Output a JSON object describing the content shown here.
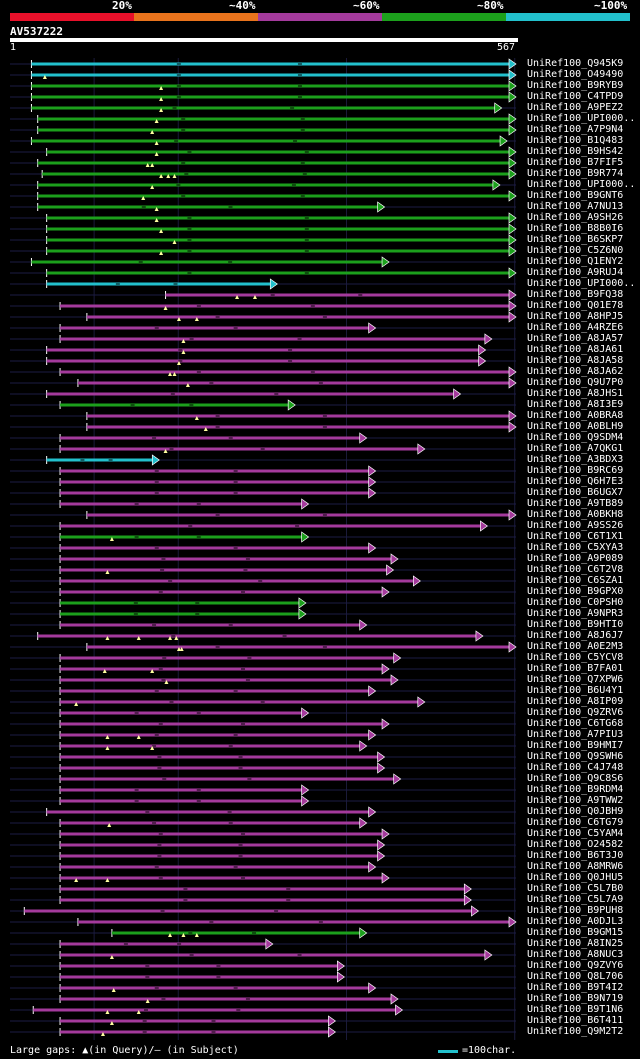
{
  "query": {
    "name": "AV537222",
    "start": "1",
    "end": "567",
    "length": 567
  },
  "legend": {
    "labels": [
      "20%",
      "~40%",
      "~60%",
      "~80%",
      "~100%"
    ],
    "colors": [
      "#e8102a",
      "#e8731c",
      "#a43a9c",
      "#1ca01c",
      "#22c0cc"
    ]
  },
  "footer": {
    "gaps_text": "Large gaps: ▲(in Query)/– (in Subject)",
    "scale_text": "=100char."
  },
  "hits": [
    {
      "label": "UniRef100_Q945K9",
      "start": 25,
      "end": 567,
      "color": "cyan",
      "gaps": []
    },
    {
      "label": "UniRef100_O49490",
      "start": 25,
      "end": 567,
      "color": "cyan",
      "gaps": [
        40
      ]
    },
    {
      "label": "UniRef100_B9RYB9",
      "start": 25,
      "end": 567,
      "color": "green",
      "gaps": [
        170
      ]
    },
    {
      "label": "UniRef100_C4TPD9",
      "start": 25,
      "end": 567,
      "color": "green",
      "gaps": [
        170
      ]
    },
    {
      "label": "UniRef100_A9PEZ2",
      "start": 25,
      "end": 551,
      "color": "green",
      "gaps": [
        170
      ]
    },
    {
      "label": "UniRef100_UPI000..",
      "start": 32,
      "end": 567,
      "color": "green",
      "gaps": [
        165
      ]
    },
    {
      "label": "UniRef100_A7P9N4",
      "start": 32,
      "end": 567,
      "color": "green",
      "gaps": [
        160
      ]
    },
    {
      "label": "UniRef100_B1Q483",
      "start": 25,
      "end": 557,
      "color": "green",
      "gaps": [
        165
      ]
    },
    {
      "label": "UniRef100_B9HS42",
      "start": 42,
      "end": 567,
      "color": "green",
      "gaps": [
        165
      ]
    },
    {
      "label": "UniRef100_B7FIF5",
      "start": 32,
      "end": 567,
      "color": "green",
      "gaps": [
        155,
        160
      ]
    },
    {
      "label": "UniRef100_B9R774",
      "start": 37,
      "end": 567,
      "color": "green",
      "gaps": [
        170,
        178,
        185
      ]
    },
    {
      "label": "UniRef100_UPI000..",
      "start": 32,
      "end": 549,
      "color": "green",
      "gaps": [
        160
      ]
    },
    {
      "label": "UniRef100_B9GNT6",
      "start": 32,
      "end": 567,
      "color": "green",
      "gaps": [
        150
      ]
    },
    {
      "label": "UniRef100_A7NU13",
      "start": 32,
      "end": 420,
      "color": "green",
      "gaps": [
        165
      ]
    },
    {
      "label": "UniRef100_A9SH26",
      "start": 42,
      "end": 567,
      "color": "green",
      "gaps": [
        165
      ]
    },
    {
      "label": "UniRef100_B8B0I6",
      "start": 42,
      "end": 567,
      "color": "green",
      "gaps": [
        170
      ]
    },
    {
      "label": "UniRef100_B6SKP7",
      "start": 42,
      "end": 567,
      "color": "green",
      "gaps": [
        185
      ]
    },
    {
      "label": "UniRef100_C5Z6N0",
      "start": 42,
      "end": 567,
      "color": "green",
      "gaps": [
        170
      ]
    },
    {
      "label": "UniRef100_Q1ENY2",
      "start": 25,
      "end": 425,
      "color": "green",
      "gaps": []
    },
    {
      "label": "UniRef100_A9RUJ4",
      "start": 42,
      "end": 567,
      "color": "green",
      "gaps": []
    },
    {
      "label": "UniRef100_UPI000..",
      "start": 42,
      "end": 300,
      "color": "cyan",
      "gaps": []
    },
    {
      "label": "UniRef100_B9FQ38",
      "start": 175,
      "end": 567,
      "color": "magenta",
      "gaps": [
        255,
        275
      ]
    },
    {
      "label": "UniRef100_Q01E78",
      "start": 57,
      "end": 567,
      "color": "magenta",
      "gaps": [
        175
      ]
    },
    {
      "label": "UniRef100_A8HPJ5",
      "start": 87,
      "end": 567,
      "color": "magenta",
      "gaps": [
        190,
        210
      ]
    },
    {
      "label": "UniRef100_A4RZE6",
      "start": 57,
      "end": 410,
      "color": "magenta",
      "gaps": []
    },
    {
      "label": "UniRef100_A8JA57",
      "start": 57,
      "end": 540,
      "color": "magenta",
      "gaps": [
        195
      ]
    },
    {
      "label": "UniRef100_A8JA61",
      "start": 42,
      "end": 533,
      "color": "magenta",
      "gaps": [
        195
      ]
    },
    {
      "label": "UniRef100_A8JA58",
      "start": 42,
      "end": 533,
      "color": "magenta",
      "gaps": [
        190
      ]
    },
    {
      "label": "UniRef100_A8JA62",
      "start": 57,
      "end": 567,
      "color": "magenta",
      "gaps": [
        180,
        185
      ]
    },
    {
      "label": "UniRef100_Q9U7P0",
      "start": 77,
      "end": 567,
      "color": "magenta",
      "gaps": [
        200
      ]
    },
    {
      "label": "UniRef100_A8JHS1",
      "start": 42,
      "end": 505,
      "color": "magenta",
      "gaps": []
    },
    {
      "label": "UniRef100_A8I3E9",
      "start": 57,
      "end": 320,
      "color": "green",
      "gaps": []
    },
    {
      "label": "UniRef100_A0BRA8",
      "start": 87,
      "end": 567,
      "color": "magenta",
      "gaps": [
        210
      ]
    },
    {
      "label": "UniRef100_A0BLH9",
      "start": 87,
      "end": 567,
      "color": "magenta",
      "gaps": [
        220
      ]
    },
    {
      "label": "UniRef100_Q9SDM4",
      "start": 57,
      "end": 400,
      "color": "magenta",
      "gaps": []
    },
    {
      "label": "UniRef100_A7QKG1",
      "start": 57,
      "end": 465,
      "color": "magenta",
      "gaps": [
        175
      ]
    },
    {
      "label": "UniRef100_A3BDX3",
      "start": 42,
      "end": 168,
      "color": "cyan",
      "gaps": []
    },
    {
      "label": "UniRef100_B9RC69",
      "start": 57,
      "end": 410,
      "color": "magenta",
      "gaps": []
    },
    {
      "label": "UniRef100_Q6H7E3",
      "start": 57,
      "end": 410,
      "color": "magenta",
      "gaps": []
    },
    {
      "label": "UniRef100_B6UGX7",
      "start": 57,
      "end": 410,
      "color": "magenta",
      "gaps": []
    },
    {
      "label": "UniRef100_A9TB89",
      "start": 57,
      "end": 335,
      "color": "magenta",
      "gaps": []
    },
    {
      "label": "UniRef100_A0BKH8",
      "start": 87,
      "end": 567,
      "color": "magenta",
      "gaps": []
    },
    {
      "label": "UniRef100_A9SS26",
      "start": 57,
      "end": 535,
      "color": "magenta",
      "gaps": []
    },
    {
      "label": "UniRef100_C6T1X1",
      "start": 57,
      "end": 335,
      "color": "green",
      "gaps": [
        115
      ]
    },
    {
      "label": "UniRef100_C5XYA3",
      "start": 57,
      "end": 410,
      "color": "magenta",
      "gaps": []
    },
    {
      "label": "UniRef100_A9P089",
      "start": 57,
      "end": 435,
      "color": "magenta",
      "gaps": []
    },
    {
      "label": "UniRef100_C6T2V8",
      "start": 57,
      "end": 430,
      "color": "magenta",
      "gaps": [
        110
      ]
    },
    {
      "label": "UniRef100_C6SZA1",
      "start": 57,
      "end": 460,
      "color": "magenta",
      "gaps": []
    },
    {
      "label": "UniRef100_B9GPX0",
      "start": 57,
      "end": 425,
      "color": "magenta",
      "gaps": []
    },
    {
      "label": "UniRef100_C0PSH0",
      "start": 57,
      "end": 332,
      "color": "green",
      "gaps": []
    },
    {
      "label": "UniRef100_A9NPR3",
      "start": 57,
      "end": 332,
      "color": "green",
      "gaps": []
    },
    {
      "label": "UniRef100_B9HTI0",
      "start": 57,
      "end": 400,
      "color": "magenta",
      "gaps": []
    },
    {
      "label": "UniRef100_A8J6J7",
      "start": 32,
      "end": 530,
      "color": "magenta",
      "gaps": [
        110,
        145,
        180,
        187
      ]
    },
    {
      "label": "UniRef100_A0E2M3",
      "start": 87,
      "end": 567,
      "color": "magenta",
      "gaps": [
        190,
        193
      ]
    },
    {
      "label": "UniRef100_C5YCV8",
      "start": 57,
      "end": 438,
      "color": "magenta",
      "gaps": []
    },
    {
      "label": "UniRef100_B7FA01",
      "start": 57,
      "end": 425,
      "color": "magenta",
      "gaps": [
        107,
        160
      ]
    },
    {
      "label": "UniRef100_Q7XPW6",
      "start": 57,
      "end": 435,
      "color": "magenta",
      "gaps": [
        176
      ]
    },
    {
      "label": "UniRef100_B6U4Y1",
      "start": 57,
      "end": 410,
      "color": "magenta",
      "gaps": []
    },
    {
      "label": "UniRef100_A8IP09",
      "start": 57,
      "end": 465,
      "color": "magenta",
      "gaps": [
        75
      ]
    },
    {
      "label": "UniRef100_Q9ZRV6",
      "start": 57,
      "end": 335,
      "color": "magenta",
      "gaps": []
    },
    {
      "label": "UniRef100_C6TG68",
      "start": 57,
      "end": 425,
      "color": "magenta",
      "gaps": []
    },
    {
      "label": "UniRef100_A7PIU3",
      "start": 57,
      "end": 410,
      "color": "magenta",
      "gaps": [
        110,
        145
      ]
    },
    {
      "label": "UniRef100_B9HMI7",
      "start": 57,
      "end": 400,
      "color": "magenta",
      "gaps": [
        110,
        160
      ]
    },
    {
      "label": "UniRef100_Q9SWH6",
      "start": 57,
      "end": 420,
      "color": "magenta",
      "gaps": []
    },
    {
      "label": "UniRef100_C4J748",
      "start": 57,
      "end": 420,
      "color": "magenta",
      "gaps": []
    },
    {
      "label": "UniRef100_Q9C8S6",
      "start": 57,
      "end": 438,
      "color": "magenta",
      "gaps": []
    },
    {
      "label": "UniRef100_B9RDM4",
      "start": 57,
      "end": 335,
      "color": "magenta",
      "gaps": []
    },
    {
      "label": "UniRef100_A9TWW2",
      "start": 57,
      "end": 335,
      "color": "magenta",
      "gaps": []
    },
    {
      "label": "UniRef100_Q0JBH9",
      "start": 42,
      "end": 410,
      "color": "magenta",
      "gaps": []
    },
    {
      "label": "UniRef100_C6TG79",
      "start": 57,
      "end": 400,
      "color": "magenta",
      "gaps": [
        112
      ]
    },
    {
      "label": "UniRef100_C5YAM4",
      "start": 57,
      "end": 425,
      "color": "magenta",
      "gaps": []
    },
    {
      "label": "UniRef100_O24582",
      "start": 57,
      "end": 420,
      "color": "magenta",
      "gaps": []
    },
    {
      "label": "UniRef100_B6T3J0",
      "start": 57,
      "end": 420,
      "color": "magenta",
      "gaps": []
    },
    {
      "label": "UniRef100_A8MRW6",
      "start": 57,
      "end": 410,
      "color": "magenta",
      "gaps": []
    },
    {
      "label": "UniRef100_Q0JHU5",
      "start": 57,
      "end": 425,
      "color": "magenta",
      "gaps": [
        75,
        110
      ]
    },
    {
      "label": "UniRef100_C5L7B0",
      "start": 57,
      "end": 517,
      "color": "magenta",
      "gaps": []
    },
    {
      "label": "UniRef100_C5L7A9",
      "start": 57,
      "end": 517,
      "color": "magenta",
      "gaps": []
    },
    {
      "label": "UniRef100_B9PUH8",
      "start": 17,
      "end": 525,
      "color": "magenta",
      "gaps": []
    },
    {
      "label": "UniRef100_A0DJL3",
      "start": 77,
      "end": 567,
      "color": "magenta",
      "gaps": []
    },
    {
      "label": "UniRef100_B9GM15",
      "start": 115,
      "end": 400,
      "color": "green",
      "gaps": [
        180,
        195,
        210
      ]
    },
    {
      "label": "UniRef100_A8IN25",
      "start": 57,
      "end": 295,
      "color": "magenta",
      "gaps": []
    },
    {
      "label": "UniRef100_A8NUC3",
      "start": 57,
      "end": 540,
      "color": "magenta",
      "gaps": [
        115
      ]
    },
    {
      "label": "UniRef100_Q9ZVY6",
      "start": 57,
      "end": 375,
      "color": "magenta",
      "gaps": []
    },
    {
      "label": "UniRef100_Q8L706",
      "start": 57,
      "end": 375,
      "color": "magenta",
      "gaps": []
    },
    {
      "label": "UniRef100_B9T4I2",
      "start": 57,
      "end": 410,
      "color": "magenta",
      "gaps": [
        117
      ]
    },
    {
      "label": "UniRef100_B9N719",
      "start": 57,
      "end": 435,
      "color": "magenta",
      "gaps": [
        155
      ]
    },
    {
      "label": "UniRef100_B9T1N6",
      "start": 27,
      "end": 440,
      "color": "magenta",
      "gaps": [
        110,
        145
      ]
    },
    {
      "label": "UniRef100_B6T411",
      "start": 57,
      "end": 365,
      "color": "magenta",
      "gaps": [
        115
      ]
    },
    {
      "label": "UniRef100_Q9M2T2",
      "start": 57,
      "end": 365,
      "color": "magenta",
      "gaps": [
        105
      ]
    }
  ]
}
